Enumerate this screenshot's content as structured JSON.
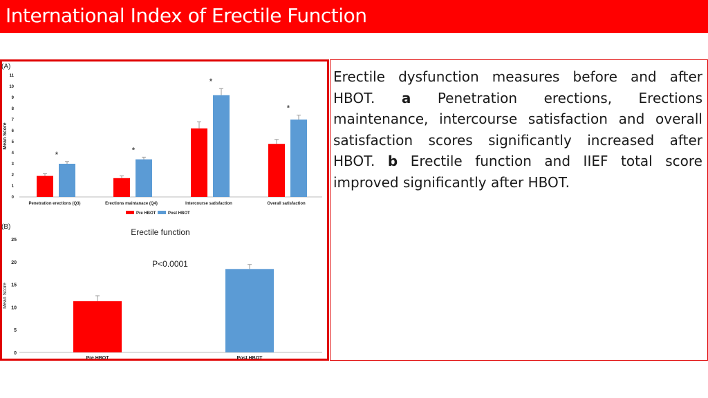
{
  "title": "International Index of Erectile Function",
  "caption": {
    "part1": "Erectile dysfunction measures before and after HBOT. ",
    "label_a": "a",
    "part2": " Penetration erections, Erections maintenance, intercourse satisfaction and overall satisfaction scores significantly increased after HBOT. ",
    "label_b": "b",
    "part3": " Erectile function and IIEF total score improved significantly after HBOT."
  },
  "colors": {
    "pre": "#ff0000",
    "post": "#5b9bd5",
    "accent": "#ff0000"
  },
  "chart_data": [
    {
      "type": "bar",
      "panel_label": "(A)",
      "ylabel": "Mean Score",
      "ylim": [
        0,
        11
      ],
      "yticks": [
        0,
        1,
        2,
        3,
        4,
        5,
        6,
        7,
        8,
        9,
        10,
        11
      ],
      "categories": [
        "Penetration erections (Q3)",
        "Erections maintanace (Q4)",
        "Intercourse satisfaction",
        "Overall satisfaction"
      ],
      "series": [
        {
          "name": "Pre HBOT",
          "values": [
            1.9,
            1.7,
            6.2,
            4.8
          ],
          "errors": [
            0.2,
            0.2,
            0.6,
            0.4
          ]
        },
        {
          "name": "Post HBOT",
          "values": [
            3.0,
            3.4,
            9.2,
            7.0
          ],
          "errors": [
            0.2,
            0.2,
            0.6,
            0.4
          ]
        }
      ],
      "annotations": [
        "*",
        "*",
        "*",
        "*"
      ],
      "legend": "bottom"
    },
    {
      "type": "bar",
      "panel_label": "(B)",
      "title": "Erectile function",
      "ylabel": "Mean Score",
      "ylim": [
        0,
        25
      ],
      "yticks": [
        0,
        5,
        10,
        15,
        20,
        25
      ],
      "categories": [
        "Pre HBOT",
        "Post HBOT"
      ],
      "values": [
        11.3,
        18.4
      ],
      "errors": [
        1.2,
        1.0
      ],
      "annotation": "P<0.0001"
    }
  ]
}
